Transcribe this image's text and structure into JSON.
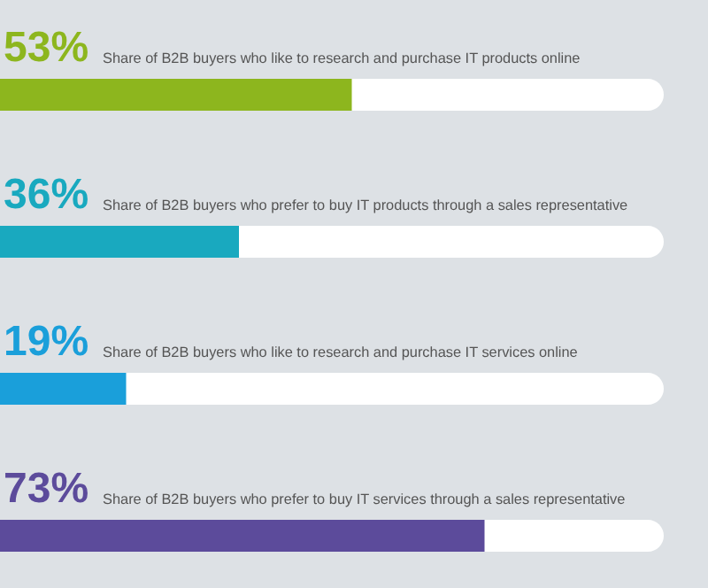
{
  "chart_data": {
    "type": "bar",
    "orientation": "horizontal",
    "categories": [
      "Share of B2B buyers who like to research and purchase IT products online",
      "Share of B2B buyers who prefer to buy IT products through a sales representative",
      "Share of B2B buyers who like to research and purchase IT services online",
      "Share of B2B buyers who prefer to buy IT services through a sales representative"
    ],
    "values": [
      53,
      36,
      19,
      73
    ],
    "colors": [
      "#8db61e",
      "#19a9bf",
      "#1a9fda",
      "#5c4b9b"
    ],
    "value_labels": [
      "53%",
      "36%",
      "19%",
      "73%"
    ],
    "xlim": [
      0,
      100
    ],
    "tick_labels": false
  }
}
